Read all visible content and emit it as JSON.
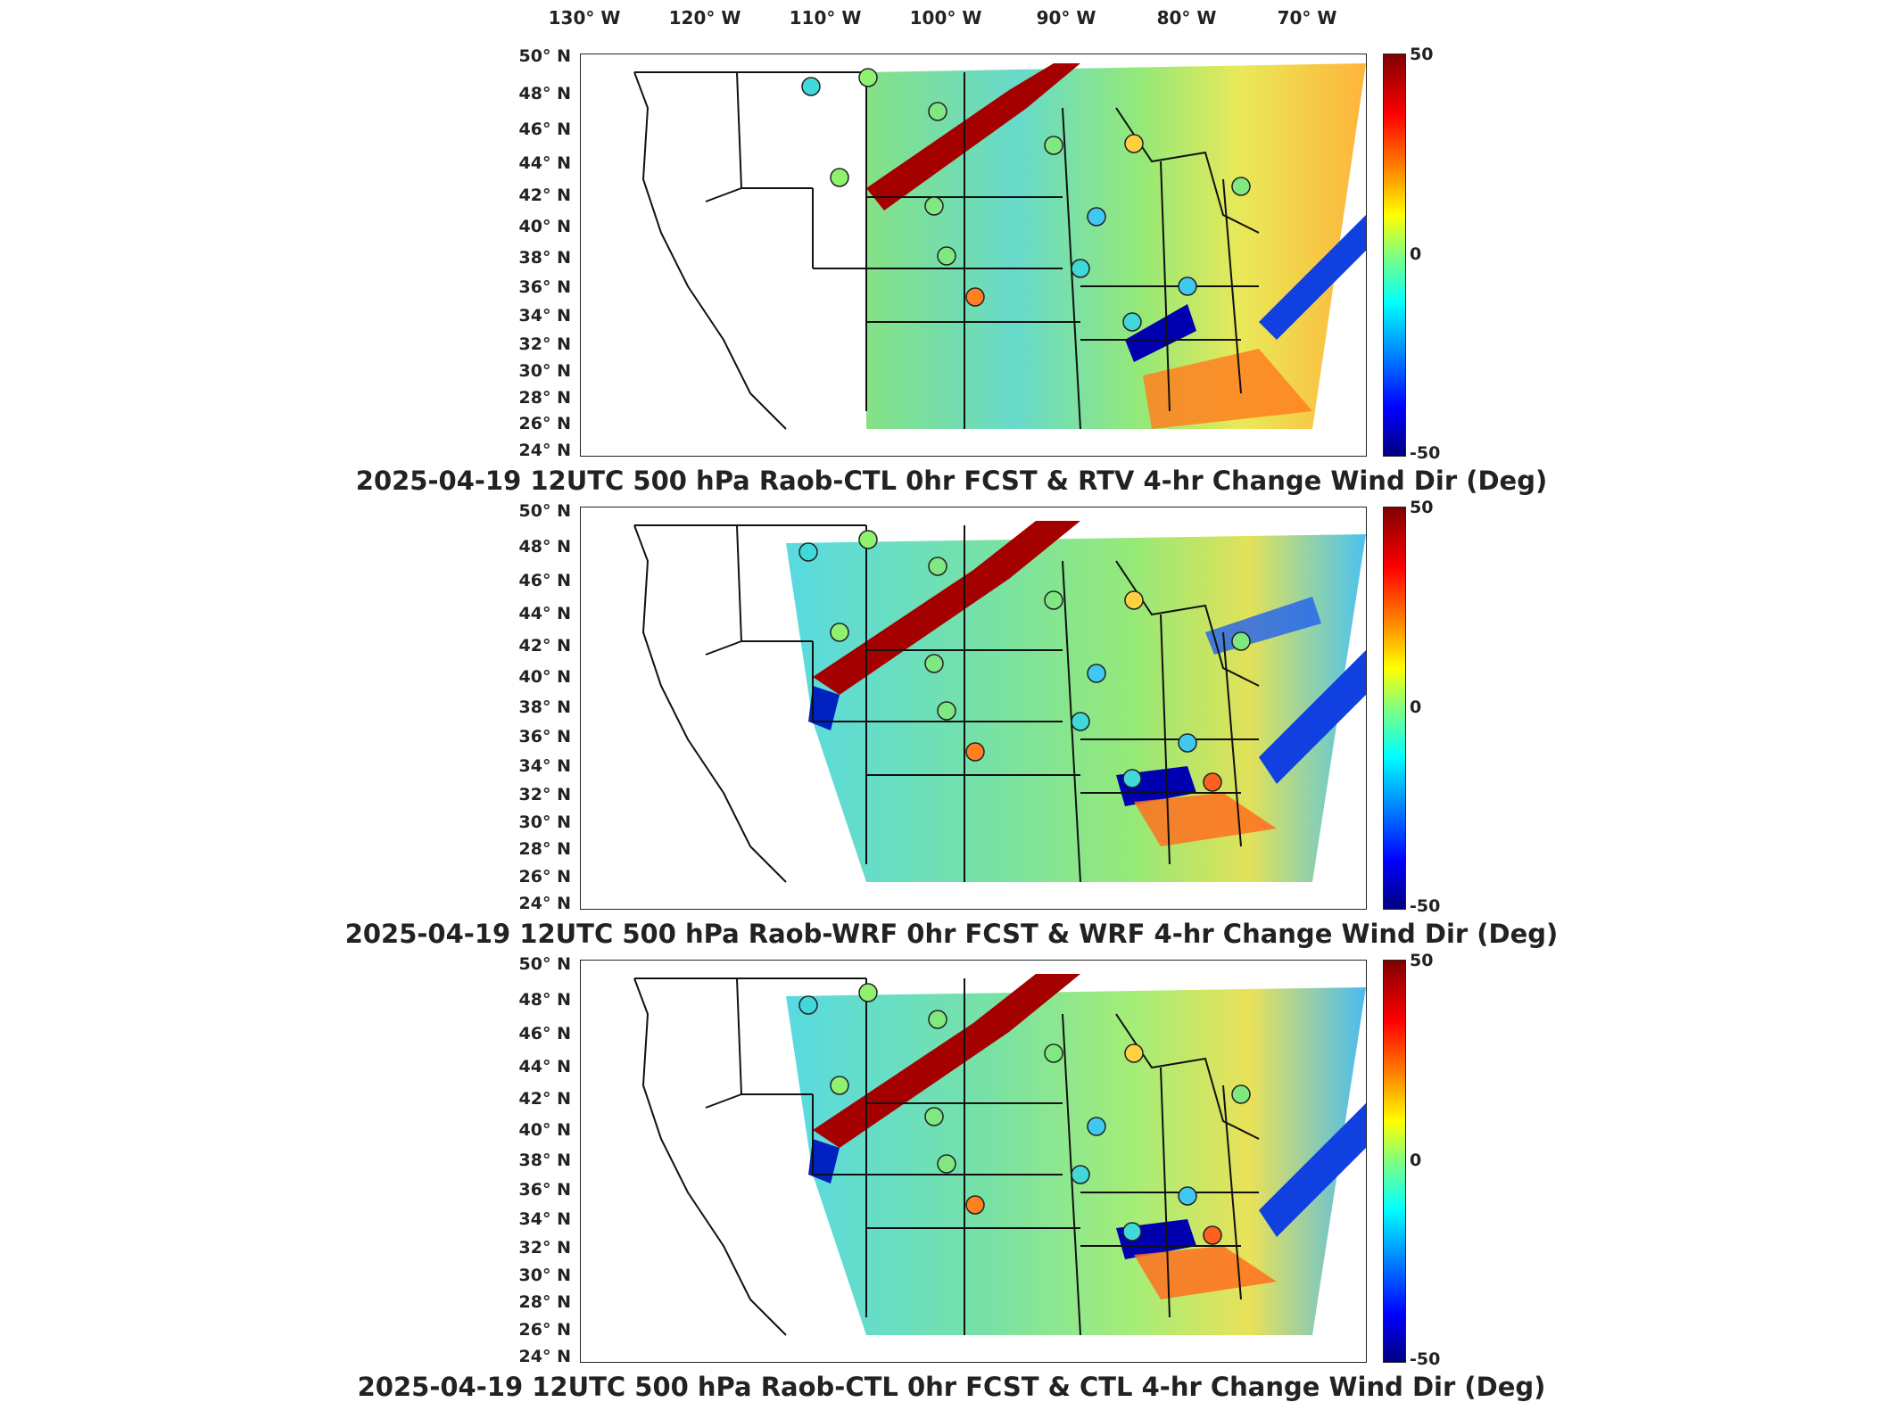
{
  "lon_labels": [
    {
      "text": "130° W"
    },
    {
      "text": "120° W"
    },
    {
      "text": "110° W"
    },
    {
      "text": "100° W"
    },
    {
      "text": "90° W"
    },
    {
      "text": "80° W"
    },
    {
      "text": "70° W"
    }
  ],
  "lat_labels": [
    "50° N",
    "48° N",
    "46° N",
    "44° N",
    "42° N",
    "40° N",
    "38° N",
    "36° N",
    "34° N",
    "32° N",
    "30° N",
    "28° N",
    "26° N",
    "24° N"
  ],
  "colorbar": {
    "max": "50",
    "mid": "0",
    "min": "-50"
  },
  "panels": [
    {
      "title": "2025-04-19 12UTC 500 hPa Raob-CTL 0hr FCST & RTV 4-hr Change Wind Dir (Deg)"
    },
    {
      "title": "2025-04-19 12UTC 500 hPa Raob-WRF 0hr FCST & WRF 4-hr Change Wind Dir (Deg)"
    },
    {
      "title": "2025-04-19 12UTC 500 hPa Raob-CTL 0hr FCST & CTL 4-hr Change Wind Dir (Deg)"
    }
  ],
  "colors": {
    "high": "#a50000",
    "mid": "#7fff7f",
    "low": "#00008b"
  }
}
